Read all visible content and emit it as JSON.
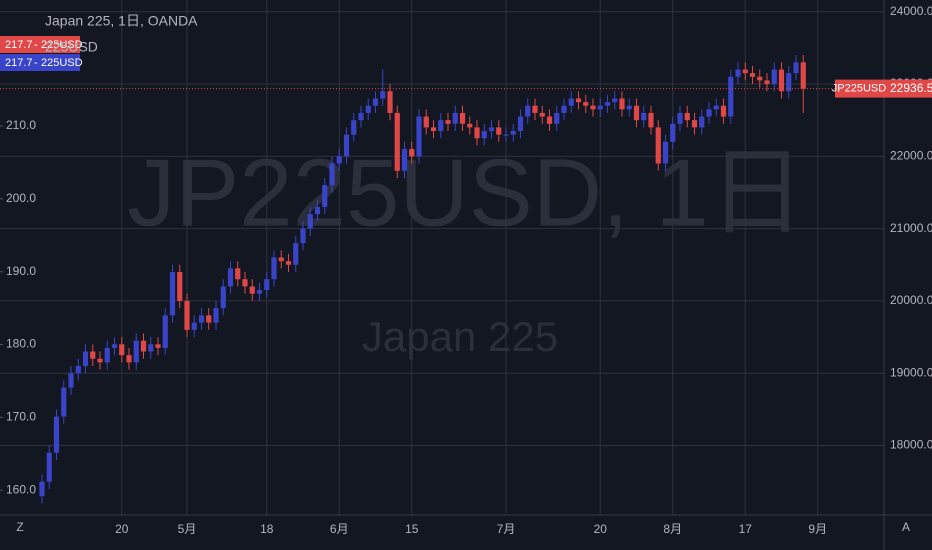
{
  "chart_data": {
    "type": "candlestick",
    "title": "Japan 225, 1日, OANDA",
    "watermark": "JP225USD, 1日",
    "watermark_sub": "Japan 225",
    "corner_left": "Z",
    "corner_right": "A",
    "grid": true,
    "categories": [
      null,
      null,
      null,
      null,
      null,
      null,
      null,
      null,
      null,
      null,
      null,
      "20",
      null,
      null,
      null,
      null,
      null,
      null,
      null,
      null,
      "5月",
      null,
      null,
      null,
      null,
      null,
      null,
      null,
      null,
      null,
      null,
      "18",
      null,
      null,
      null,
      null,
      null,
      null,
      null,
      null,
      null,
      "6月",
      null,
      null,
      null,
      null,
      null,
      null,
      null,
      null,
      null,
      "15",
      null,
      null,
      null,
      null,
      null,
      null,
      null,
      null,
      null,
      null,
      null,
      null,
      "7月",
      null,
      null,
      null,
      null,
      null,
      null,
      null,
      null,
      null,
      null,
      null,
      null,
      "20",
      null,
      null,
      null,
      null,
      null,
      null,
      null,
      null,
      null,
      "8月",
      null,
      null,
      null,
      null,
      null,
      null,
      null,
      null,
      null,
      "17",
      null,
      null,
      null,
      null,
      null,
      null,
      null,
      null,
      null,
      "9月"
    ],
    "series": [
      {
        "name": "JP225USD",
        "up_color": "#3a44c8",
        "down_color": "#e04848",
        "open": [
          17300,
          17500,
          17900,
          18400,
          18800,
          19000,
          19100,
          19300,
          19200,
          19150,
          19350,
          19400,
          19250,
          19150,
          19450,
          19300,
          19400,
          19350,
          19800,
          20400,
          20000,
          19600,
          19700,
          19800,
          19700,
          19900,
          20200,
          20450,
          20300,
          20200,
          20100,
          20150,
          20300,
          20600,
          20550,
          20500,
          20800,
          21000,
          21200,
          21300,
          21600,
          21900,
          22000,
          22300,
          22500,
          22600,
          22700,
          22800,
          22900,
          22600,
          21800,
          22100,
          22000,
          22550,
          22400,
          22350,
          22500,
          22450,
          22600,
          22450,
          22400,
          22250,
          22350,
          22400,
          22300,
          22300,
          22350,
          22550,
          22700,
          22600,
          22550,
          22450,
          22600,
          22700,
          22800,
          22750,
          22700,
          22650,
          22700,
          22750,
          22800,
          22650,
          22700,
          22500,
          22600,
          22400,
          21900,
          22200,
          22450,
          22600,
          22500,
          22400,
          22550,
          22650,
          22700,
          22550,
          23100,
          23200,
          23150,
          23100,
          23050,
          23000,
          23200,
          22900,
          23150,
          23300,
          null,
          null
        ],
        "high": [
          17600,
          18000,
          18500,
          18900,
          19100,
          19200,
          19400,
          19400,
          19300,
          19450,
          19500,
          19500,
          19350,
          19550,
          19550,
          19500,
          19500,
          19900,
          20500,
          20500,
          20100,
          19800,
          19900,
          19900,
          20000,
          20300,
          20550,
          20550,
          20400,
          20300,
          20250,
          20400,
          20700,
          20700,
          20650,
          20900,
          21100,
          21300,
          21400,
          21700,
          22000,
          22100,
          22400,
          22600,
          22700,
          22800,
          22900,
          23200,
          23000,
          22700,
          22200,
          22200,
          22650,
          22650,
          22500,
          22600,
          22600,
          22700,
          22700,
          22550,
          22500,
          22450,
          22500,
          22500,
          22400,
          22450,
          22650,
          22800,
          22800,
          22700,
          22650,
          22700,
          22800,
          22900,
          22900,
          22850,
          22800,
          22800,
          22850,
          22900,
          22900,
          22800,
          22800,
          22700,
          22700,
          22500,
          22300,
          22550,
          22700,
          22700,
          22600,
          22650,
          22750,
          22800,
          22800,
          23200,
          23300,
          23300,
          23250,
          23200,
          23150,
          23300,
          23300,
          23250,
          23400,
          23400,
          null,
          null
        ],
        "low": [
          17200,
          17400,
          17800,
          18300,
          18700,
          18900,
          19000,
          19100,
          19050,
          19050,
          19250,
          19150,
          19050,
          19050,
          19200,
          19200,
          19250,
          19250,
          19700,
          19900,
          19500,
          19500,
          19600,
          19600,
          19600,
          19800,
          20100,
          20200,
          20100,
          20000,
          20000,
          20050,
          20200,
          20450,
          20400,
          20400,
          20700,
          20900,
          21100,
          21200,
          21500,
          21800,
          21900,
          22200,
          22400,
          22500,
          22600,
          22700,
          22500,
          21700,
          21700,
          21900,
          21900,
          22300,
          22250,
          22250,
          22350,
          22350,
          22350,
          22300,
          22150,
          22150,
          22250,
          22200,
          22200,
          22200,
          22250,
          22450,
          22500,
          22450,
          22350,
          22350,
          22500,
          22600,
          22650,
          22600,
          22550,
          22550,
          22600,
          22650,
          22550,
          22550,
          22400,
          22400,
          22300,
          21800,
          21800,
          22100,
          22350,
          22400,
          22300,
          22300,
          22450,
          22550,
          22450,
          22450,
          23000,
          23050,
          23000,
          22950,
          22900,
          22900,
          22800,
          22800,
          23050,
          22600,
          null,
          null
        ],
        "close": [
          17500,
          17900,
          18400,
          18800,
          19000,
          19100,
          19300,
          19200,
          19150,
          19350,
          19400,
          19250,
          19150,
          19450,
          19300,
          19400,
          19350,
          19800,
          20400,
          20000,
          19600,
          19700,
          19800,
          19700,
          19900,
          20200,
          20450,
          20300,
          20200,
          20100,
          20150,
          20300,
          20600,
          20550,
          20500,
          20800,
          21000,
          21200,
          21300,
          21600,
          21900,
          22000,
          22300,
          22500,
          22600,
          22700,
          22800,
          22900,
          22600,
          21800,
          22100,
          22000,
          22550,
          22400,
          22350,
          22500,
          22450,
          22600,
          22450,
          22400,
          22250,
          22350,
          22400,
          22300,
          22300,
          22350,
          22550,
          22700,
          22600,
          22550,
          22450,
          22600,
          22700,
          22800,
          22750,
          22700,
          22650,
          22700,
          22750,
          22800,
          22650,
          22700,
          22500,
          22600,
          22400,
          21900,
          22200,
          22450,
          22600,
          22500,
          22400,
          22550,
          22650,
          22700,
          22550,
          23100,
          23200,
          23150,
          23100,
          23050,
          23000,
          23200,
          22900,
          23150,
          23300,
          22936.5,
          null,
          null
        ]
      }
    ],
    "last_price": 22936.5,
    "secondary_labels": [
      {
        "value": 217.7,
        "name": "225USD",
        "color": "#e04848"
      },
      {
        "value": 217.7,
        "name": "225USD",
        "color": "#3a44c8"
      }
    ],
    "secondary_name": "225USD",
    "ylim": [
      17039,
      24162
    ],
    "yticks": [
      {
        "value": 18000,
        "label": "18000.0"
      },
      {
        "value": 19000,
        "label": "19000.0"
      },
      {
        "value": 20000,
        "label": "20000.0"
      },
      {
        "value": 21000,
        "label": "21000.0"
      },
      {
        "value": 22000,
        "label": "22000.0"
      },
      {
        "value": 23000,
        "label": "23000.0"
      },
      {
        "value": 24000,
        "label": "24000.0"
      }
    ],
    "y2lim": [
      156.6,
      227.3
    ],
    "y2ticks": [
      {
        "value": 160,
        "label": "160.0"
      },
      {
        "value": 170,
        "label": "170.0"
      },
      {
        "value": 180,
        "label": "180.0"
      },
      {
        "value": 190,
        "label": "190.0"
      },
      {
        "value": 200,
        "label": "200.0"
      },
      {
        "value": 210,
        "label": "210.0"
      }
    ]
  }
}
